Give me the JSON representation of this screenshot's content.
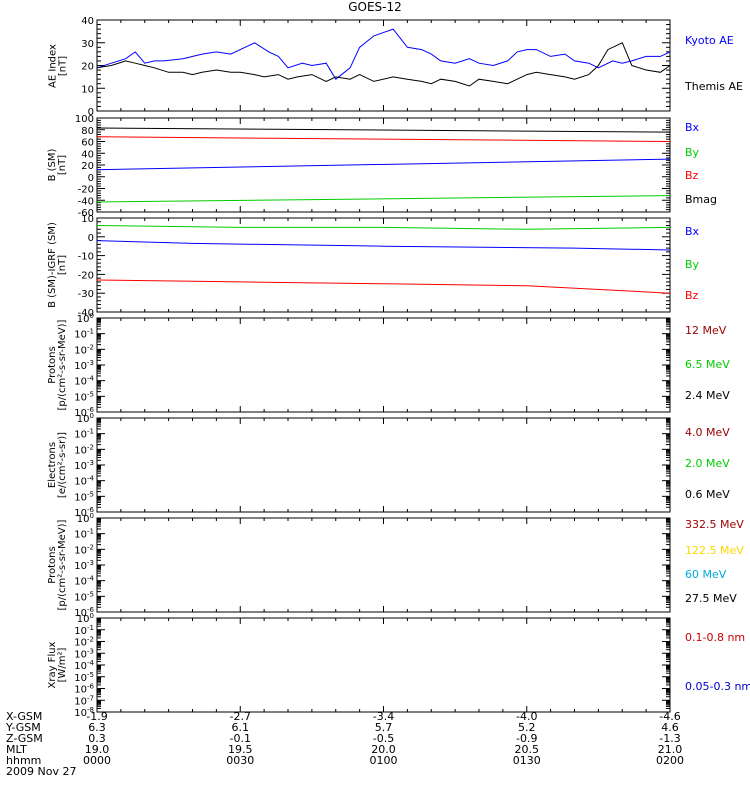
{
  "title": "GOES-12",
  "chart_data": [
    {
      "type": "line",
      "ylabel_lines": [
        "AE Index",
        "[nT]"
      ],
      "ylim": [
        0,
        40
      ],
      "y_ticks": [
        0,
        10,
        20,
        30,
        40
      ],
      "x_range": [
        0,
        120
      ],
      "series": [
        {
          "name": "Kyoto AE",
          "color": "#0000ff",
          "x": [
            0,
            3,
            6,
            8,
            10,
            12,
            14,
            18,
            22,
            25,
            28,
            30,
            33,
            36,
            38,
            40,
            43,
            45,
            48,
            50,
            53,
            55,
            58,
            62,
            65,
            68,
            70,
            72,
            75,
            78,
            80,
            83,
            86,
            88,
            90,
            92,
            95,
            98,
            100,
            103,
            105,
            108,
            110,
            112,
            115,
            118,
            120
          ],
          "y": [
            19,
            21,
            23,
            26,
            21,
            22,
            22,
            23,
            25,
            26,
            25,
            27,
            30,
            26,
            24,
            19,
            21,
            20,
            21,
            14,
            19,
            28,
            33,
            36,
            28,
            27,
            25,
            22,
            21,
            23,
            21,
            20,
            22,
            26,
            27,
            27,
            24,
            25,
            22,
            21,
            19,
            22,
            21,
            22,
            24,
            24,
            26
          ]
        },
        {
          "name": "Themis AE",
          "color": "#000000",
          "x": [
            0,
            3,
            6,
            8,
            10,
            12,
            15,
            18,
            20,
            22,
            25,
            28,
            30,
            33,
            35,
            38,
            40,
            42,
            45,
            48,
            50,
            53,
            55,
            58,
            62,
            65,
            68,
            70,
            72,
            75,
            78,
            80,
            83,
            86,
            88,
            90,
            92,
            95,
            98,
            100,
            103,
            105,
            107,
            110,
            112,
            115,
            118,
            120
          ],
          "y": [
            19,
            20,
            22,
            21,
            20,
            19,
            17,
            17,
            16,
            17,
            18,
            17,
            17,
            16,
            15,
            16,
            14,
            15,
            16,
            13,
            15,
            14,
            16,
            13,
            15,
            14,
            13,
            12,
            14,
            13,
            11,
            14,
            13,
            12,
            14,
            16,
            17,
            16,
            15,
            14,
            16,
            20,
            27,
            30,
            20,
            18,
            17,
            20
          ]
        }
      ]
    },
    {
      "type": "line",
      "ylabel_lines": [
        "B (SM)",
        "[nT]"
      ],
      "ylim": [
        -60,
        100
      ],
      "y_ticks": [
        -60,
        -40,
        -20,
        0,
        20,
        40,
        60,
        80,
        100
      ],
      "x_range": [
        0,
        120
      ],
      "series": [
        {
          "name": "Bx",
          "color": "#0000ff",
          "x": [
            0,
            120
          ],
          "y": [
            12,
            30
          ]
        },
        {
          "name": "By",
          "color": "#00cc00",
          "x": [
            0,
            120
          ],
          "y": [
            -43,
            -32
          ]
        },
        {
          "name": "Bz",
          "color": "#ff0000",
          "x": [
            0,
            120
          ],
          "y": [
            68,
            60
          ]
        },
        {
          "name": "Bmag",
          "color": "#000000",
          "x": [
            0,
            120
          ],
          "y": [
            83,
            76
          ]
        }
      ]
    },
    {
      "type": "line",
      "ylabel_lines": [
        "B (SM)-IGRF (SM)",
        "[nT]"
      ],
      "ylim": [
        -40,
        10
      ],
      "y_ticks": [
        -40,
        -30,
        -20,
        -10,
        0,
        10
      ],
      "x_range": [
        0,
        120
      ],
      "series": [
        {
          "name": "Bx",
          "color": "#0000ff",
          "x": [
            0,
            20,
            60,
            100,
            120
          ],
          "y": [
            -2,
            -3.5,
            -5,
            -6,
            -7
          ]
        },
        {
          "name": "By",
          "color": "#00cc00",
          "x": [
            0,
            30,
            60,
            90,
            120
          ],
          "y": [
            6,
            5,
            5,
            4,
            5
          ]
        },
        {
          "name": "Bz",
          "color": "#ff0000",
          "x": [
            0,
            30,
            60,
            90,
            120
          ],
          "y": [
            -23,
            -24,
            -25,
            -26,
            -30
          ]
        }
      ]
    },
    {
      "type": "line",
      "log": true,
      "ylabel_lines": [
        "Protons",
        "[p/(cm²-s-sr-MeV)]"
      ],
      "ylim_exp": [
        -6,
        0
      ],
      "legend": [
        {
          "label": "12 MeV",
          "color": "#990000"
        },
        {
          "label": "6.5 MeV",
          "color": "#00cc00"
        },
        {
          "label": "2.4 MeV",
          "color": "#000000"
        }
      ]
    },
    {
      "type": "line",
      "log": true,
      "ylabel_lines": [
        "Electrons",
        "[e/(cm²-s-sr)]"
      ],
      "ylim_exp": [
        -6,
        0
      ],
      "legend": [
        {
          "label": "4.0 MeV",
          "color": "#990000"
        },
        {
          "label": "2.0 MeV",
          "color": "#00cc00"
        },
        {
          "label": "0.6 MeV",
          "color": "#000000"
        }
      ]
    },
    {
      "type": "line",
      "log": true,
      "ylabel_lines": [
        "Protons",
        "[p/(cm²-s-sr-MeV)]"
      ],
      "ylim_exp": [
        -6,
        0
      ],
      "legend": [
        {
          "label": "332.5 MeV",
          "color": "#990000"
        },
        {
          "label": "122.5 MeV",
          "color": "#ffd700"
        },
        {
          "label": "60 MeV",
          "color": "#00aadd"
        },
        {
          "label": "27.5 MeV",
          "color": "#000000"
        }
      ]
    },
    {
      "type": "line",
      "log": true,
      "ylabel_lines": [
        "Xray Flux",
        "[W/m²]"
      ],
      "ylim_exp": [
        -8,
        0
      ],
      "legend": [
        {
          "label": "0.1-0.8 nm",
          "color": "#cc0000"
        },
        {
          "label": "0.05-0.3 nm",
          "color": "#0000cc"
        }
      ]
    }
  ],
  "footer": {
    "row_labels": [
      "X-GSM",
      "Y-GSM",
      "Z-GSM",
      "MLT",
      "hhmm",
      "2009 Nov 27"
    ],
    "columns": [
      {
        "x": 0,
        "values": [
          "-1.9",
          "6.3",
          "0.3",
          "19.0",
          "0000"
        ]
      },
      {
        "x": 30,
        "values": [
          "-2.7",
          "6.1",
          "-0.1",
          "19.5",
          "0030"
        ]
      },
      {
        "x": 60,
        "values": [
          "-3.4",
          "5.7",
          "-0.5",
          "20.0",
          "0100"
        ]
      },
      {
        "x": 90,
        "values": [
          "-4.0",
          "5.2",
          "-0.9",
          "20.5",
          "0130"
        ]
      },
      {
        "x": 120,
        "values": [
          "-4.6",
          "4.6",
          "-1.3",
          "21.0",
          "0200"
        ]
      }
    ]
  }
}
